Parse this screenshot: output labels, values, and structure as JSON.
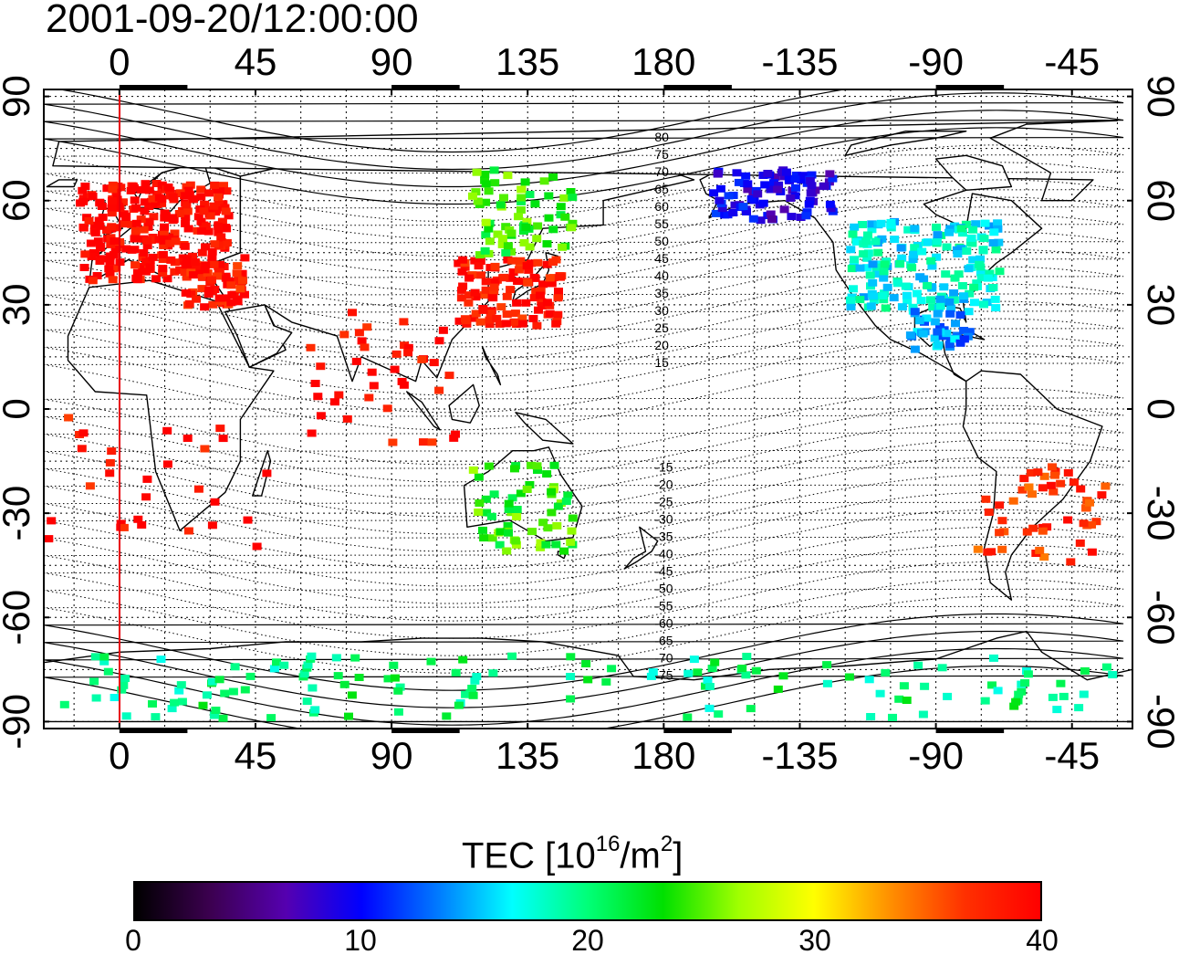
{
  "title": "2001-09-20/12:00:00",
  "map": {
    "projection": "equirectangular",
    "central_meridian": 150,
    "lon_range": [
      -25,
      335
    ],
    "lat_range": [
      -92,
      92
    ],
    "top_lon_ticks": [
      "0",
      "45",
      "90",
      "135",
      "180",
      "-135",
      "-90",
      "-45"
    ],
    "bottom_lon_ticks": [
      "0",
      "45",
      "90",
      "135",
      "180",
      "-135",
      "-90",
      "-45"
    ],
    "left_lat_ticks": [
      "90",
      "60",
      "30",
      "0",
      "-30",
      "-60",
      "-90"
    ],
    "right_lat_ticks": [
      "90",
      "60",
      "30",
      "0",
      "-30",
      "-60",
      "-90"
    ],
    "grid": "dotted 15 degrees",
    "reference_meridian_lon": 0,
    "reference_meridian_color": "#e8000b"
  },
  "magnetic_latitude_labels": [
    "80",
    "75",
    "70",
    "65",
    "60",
    "55",
    "50",
    "45",
    "40",
    "35",
    "30",
    "25",
    "20",
    "15",
    "-15",
    "-20",
    "-25",
    "-30",
    "-35",
    "-40",
    "-45",
    "-50",
    "-55",
    "-60",
    "-65",
    "-70",
    "-75"
  ],
  "colorbar": {
    "label_main": "TEC  [10",
    "label_exp1": "16",
    "label_mid": "/m",
    "label_exp2": "2",
    "label_end": "]",
    "min": 0,
    "max": 40,
    "ticks": [
      "0",
      "10",
      "20",
      "30",
      "40"
    ],
    "colormap": [
      "#000000",
      "#3c0050",
      "#5500b0",
      "#0000ff",
      "#0078ff",
      "#00ffff",
      "#00ff78",
      "#00e000",
      "#a0ff00",
      "#ffff00",
      "#ff9000",
      "#ff3000",
      "#ff0000"
    ]
  },
  "tec_regions": [
    {
      "region": "Europe",
      "tec": 40
    },
    {
      "region": "East Asia",
      "tec": 39
    },
    {
      "region": "North-east Asia",
      "tec": 25
    },
    {
      "region": "Alaska / Canada",
      "tec": 9
    },
    {
      "region": "United States",
      "tec": 17
    },
    {
      "region": "South America",
      "tec": 37
    },
    {
      "region": "Australia",
      "tec": 24
    },
    {
      "region": "Antarctica",
      "tec": 20
    }
  ]
}
